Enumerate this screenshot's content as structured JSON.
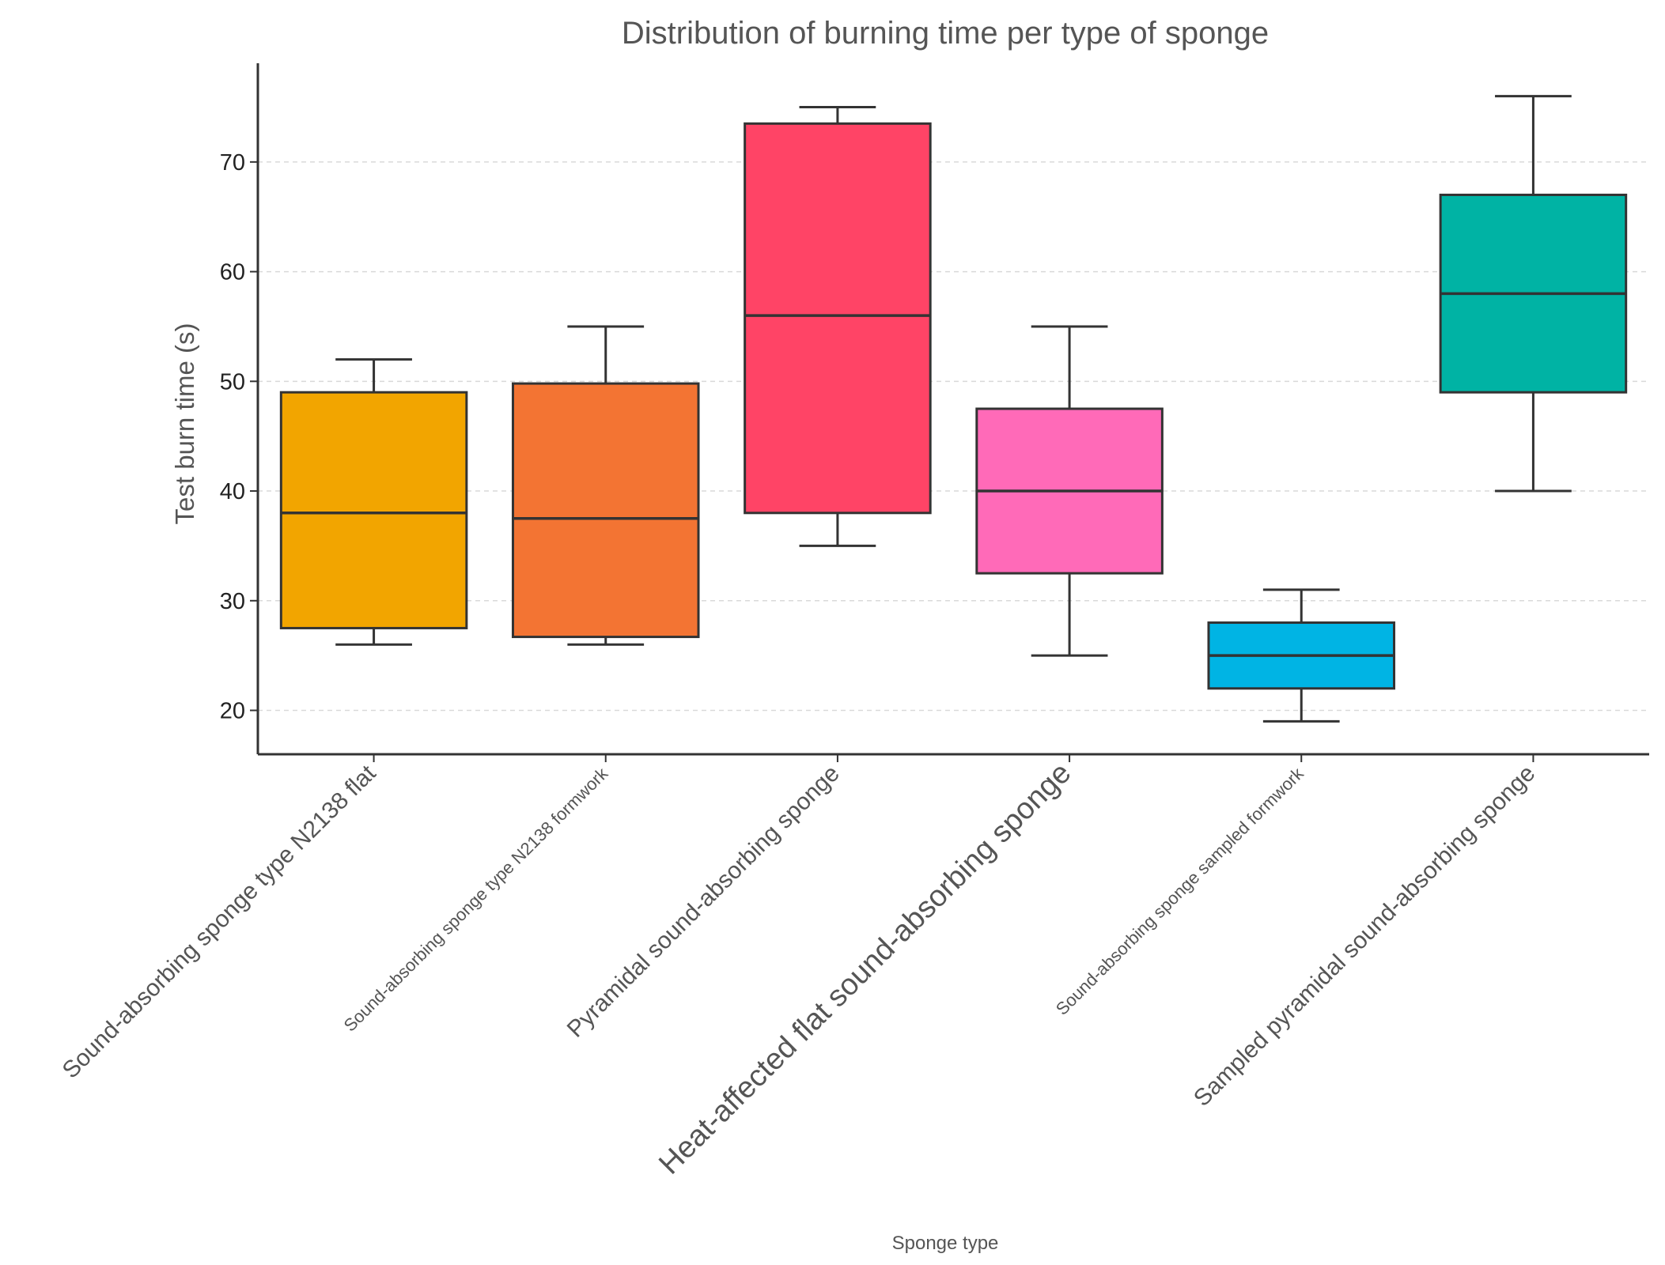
{
  "chart_data": {
    "type": "box",
    "title": "Distribution of burning time per type of sponge",
    "xlabel": "Sponge type",
    "ylabel": "Test burn time (s)",
    "ylim": [
      16,
      79
    ],
    "yticks": [
      20,
      30,
      40,
      50,
      60,
      70
    ],
    "grid": "horizontal-dashed",
    "categories": [
      {
        "label": "Sound-absorbing sponge type N2138 flat",
        "color": "#F2A500",
        "min": 26,
        "q1": 27.5,
        "median": 38,
        "q3": 49,
        "max": 52
      },
      {
        "label": "Sound-absorbing sponge type N2138 formwork",
        "color": "#F37433",
        "min": 26,
        "q1": 26.7,
        "median": 37.5,
        "q3": 49.8,
        "max": 55
      },
      {
        "label": "Pyramidal sound-absorbing sponge",
        "color": "#FF4466",
        "min": 35,
        "q1": 38,
        "median": 56,
        "q3": 73.5,
        "max": 75
      },
      {
        "label": "Heat-affected flat sound-absorbing sponge",
        "color": "#FF6AB8",
        "min": 25,
        "q1": 32.5,
        "median": 40,
        "q3": 47.5,
        "max": 55
      },
      {
        "label": "Sound-absorbing sponge sampled formwork",
        "color": "#00B4E4",
        "min": 19,
        "q1": 22,
        "median": 25,
        "q3": 28,
        "max": 31
      },
      {
        "label": "Sampled pyramidal sound-absorbing sponge",
        "color": "#00B3A4",
        "min": 40,
        "q1": 49,
        "median": 58,
        "q3": 67,
        "max": 76
      }
    ]
  }
}
